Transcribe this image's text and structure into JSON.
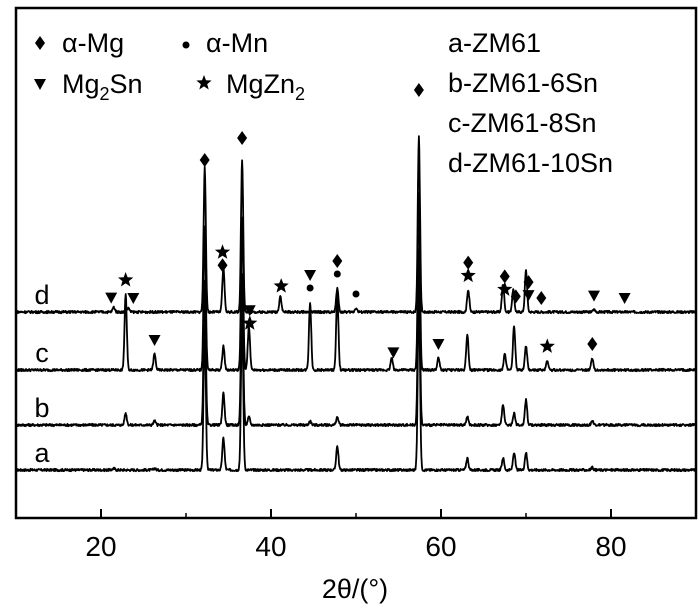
{
  "chart_data": {
    "type": "line",
    "title": "",
    "xlabel": "2θ/(°)",
    "ylabel": "",
    "xlim": [
      10,
      90
    ],
    "x_ticks": [
      20,
      40,
      60,
      80
    ],
    "x_tick_labels": [
      "20",
      "40",
      "60",
      "80"
    ],
    "y_ticks": false,
    "grid": false,
    "legend_position": "top",
    "phase_legend": [
      {
        "symbol": "diamond",
        "label": "α-Mg"
      },
      {
        "symbol": "dot",
        "label": "α-Mn"
      },
      {
        "symbol": "triangle-down",
        "label": "Mg2Sn",
        "base": "Mg",
        "sub1": "2",
        "rest": "Sn"
      },
      {
        "symbol": "star",
        "label": "MgZn2",
        "base": "MgZn",
        "sub1": "2",
        "rest": ""
      }
    ],
    "sample_legend": [
      "a-ZM61",
      "b-ZM61-6Sn",
      "c-ZM61-8Sn",
      "d-ZM61-10Sn"
    ],
    "series": [
      {
        "name": "a",
        "baseline": 0.0,
        "peaks": [
          [
            21.5,
            0.02
          ],
          [
            26.3,
            0.02
          ],
          [
            32.2,
            1.8
          ],
          [
            34.4,
            0.4
          ],
          [
            36.6,
            1.9
          ],
          [
            47.8,
            0.3
          ],
          [
            57.4,
            2.2
          ],
          [
            63.1,
            0.15
          ],
          [
            67.3,
            0.15
          ],
          [
            68.6,
            0.22
          ],
          [
            70.0,
            0.22
          ],
          [
            77.8,
            0.03
          ]
        ]
      },
      {
        "name": "b",
        "baseline": 0.0,
        "peaks": [
          [
            22.9,
            0.15
          ],
          [
            26.3,
            0.05
          ],
          [
            32.2,
            1.8
          ],
          [
            34.4,
            0.4
          ],
          [
            36.6,
            1.9
          ],
          [
            37.4,
            0.1
          ],
          [
            44.6,
            0.05
          ],
          [
            47.8,
            0.1
          ],
          [
            57.4,
            2.2
          ],
          [
            63.1,
            0.1
          ],
          [
            67.3,
            0.26
          ],
          [
            68.6,
            0.15
          ],
          [
            70.0,
            0.32
          ],
          [
            77.8,
            0.05
          ]
        ]
      },
      {
        "name": "c",
        "baseline": 0.0,
        "peaks": [
          [
            22.9,
            0.95
          ],
          [
            26.3,
            0.2
          ],
          [
            32.2,
            1.8
          ],
          [
            34.4,
            0.3
          ],
          [
            36.6,
            1.9
          ],
          [
            37.4,
            0.55
          ],
          [
            44.6,
            0.85
          ],
          [
            47.8,
            0.95
          ],
          [
            54.2,
            0.15
          ],
          [
            57.4,
            2.2
          ],
          [
            59.7,
            0.15
          ],
          [
            63.1,
            0.45
          ],
          [
            67.5,
            0.2
          ],
          [
            68.6,
            0.55
          ],
          [
            70.0,
            0.3
          ],
          [
            72.5,
            0.12
          ],
          [
            77.8,
            0.15
          ]
        ]
      },
      {
        "name": "d",
        "baseline": 0.0,
        "peaks": [
          [
            21.5,
            0.06
          ],
          [
            23.2,
            0.05
          ],
          [
            32.2,
            1.8
          ],
          [
            34.4,
            0.55
          ],
          [
            36.6,
            1.9
          ],
          [
            41.1,
            0.2
          ],
          [
            47.8,
            0.3
          ],
          [
            50.0,
            0.05
          ],
          [
            57.4,
            2.2
          ],
          [
            63.2,
            0.28
          ],
          [
            67.3,
            0.35
          ],
          [
            68.5,
            0.28
          ],
          [
            70.0,
            0.52
          ],
          [
            78.0,
            0.03
          ]
        ]
      }
    ],
    "phase_markers": [
      {
        "series": "d",
        "x": 21.2,
        "symbol": "triangle-down"
      },
      {
        "series": "d",
        "x": 23.8,
        "symbol": "triangle-down"
      },
      {
        "series": "d",
        "x": 34.3,
        "symbol": "diamond"
      },
      {
        "series": "d",
        "x": 34.3,
        "symbol": "star"
      },
      {
        "series": "d",
        "x": 41.2,
        "symbol": "star"
      },
      {
        "series": "d",
        "x": 47.8,
        "symbol": "dot"
      },
      {
        "series": "d",
        "x": 47.8,
        "symbol": "diamond"
      },
      {
        "series": "d",
        "x": 50.0,
        "symbol": "dot"
      },
      {
        "series": "d",
        "x": 63.2,
        "symbol": "star"
      },
      {
        "series": "d",
        "x": 63.2,
        "symbol": "diamond"
      },
      {
        "series": "d",
        "x": 67.5,
        "symbol": "star"
      },
      {
        "series": "d",
        "x": 67.5,
        "symbol": "diamond"
      },
      {
        "series": "d",
        "x": 68.8,
        "symbol": "diamond"
      },
      {
        "series": "d",
        "x": 70.3,
        "symbol": "triangle-down"
      },
      {
        "series": "d",
        "x": 70.3,
        "symbol": "diamond"
      },
      {
        "series": "d",
        "x": 71.8,
        "symbol": "diamond"
      },
      {
        "series": "d",
        "x": 78.0,
        "symbol": "triangle-down"
      },
      {
        "series": "d",
        "x": 81.6,
        "symbol": "triangle-down"
      },
      {
        "series": "d",
        "x": 32.2,
        "symbol": "diamond"
      },
      {
        "series": "d",
        "x": 36.6,
        "symbol": "diamond"
      },
      {
        "series": "d",
        "x": 57.4,
        "symbol": "diamond"
      },
      {
        "series": "c",
        "x": 22.9,
        "symbol": "star"
      },
      {
        "series": "c",
        "x": 26.3,
        "symbol": "triangle-down"
      },
      {
        "series": "c",
        "x": 37.5,
        "symbol": "star"
      },
      {
        "series": "c",
        "x": 37.5,
        "symbol": "triangle-down"
      },
      {
        "series": "c",
        "x": 44.6,
        "symbol": "dot"
      },
      {
        "series": "c",
        "x": 44.6,
        "symbol": "triangle-down"
      },
      {
        "series": "c",
        "x": 54.4,
        "symbol": "triangle-down"
      },
      {
        "series": "c",
        "x": 59.7,
        "symbol": "triangle-down"
      },
      {
        "series": "c",
        "x": 72.5,
        "symbol": "star"
      },
      {
        "series": "c",
        "x": 77.8,
        "symbol": "diamond"
      }
    ],
    "curve_labels": [
      {
        "series": "d",
        "text": "d"
      },
      {
        "series": "c",
        "text": "c"
      },
      {
        "series": "b",
        "text": "b"
      },
      {
        "series": "a",
        "text": "a"
      }
    ]
  }
}
